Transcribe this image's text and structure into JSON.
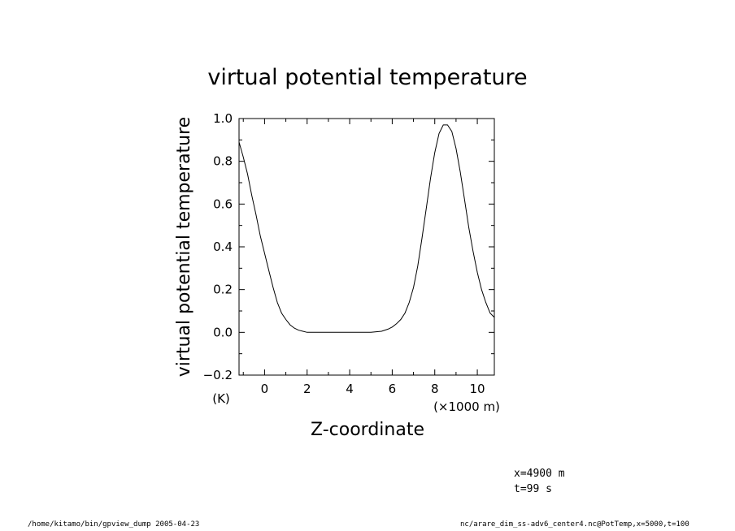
{
  "chart_data": {
    "type": "line",
    "title": "virtual potential temperature",
    "xlabel": "Z-coordinate",
    "ylabel": "virtual potential temperature",
    "xunit": "(×1000 m)",
    "yunit": "(K)",
    "xlim": [
      -1.2,
      10.8
    ],
    "ylim": [
      -0.2,
      1.0
    ],
    "xticks": [
      "0",
      "2",
      "4",
      "6",
      "8",
      "10"
    ],
    "yticks": [
      "1.0",
      "0.8",
      "0.6",
      "0.4",
      "0.2",
      "0.0",
      "−0.2"
    ],
    "grid": false,
    "series": [
      {
        "x": [
          -1.2,
          -1.0,
          -0.8,
          -0.6,
          -0.4,
          -0.2,
          0.0,
          0.2,
          0.4,
          0.6,
          0.8,
          1.0,
          1.2,
          1.4,
          1.6,
          1.8,
          2.0,
          2.5,
          3.0,
          4.0,
          5.0,
          5.5,
          5.8,
          6.0,
          6.2,
          6.4,
          6.6,
          6.8,
          7.0,
          7.2,
          7.4,
          7.6,
          7.8,
          8.0,
          8.2,
          8.4,
          8.6,
          8.8,
          9.0,
          9.2,
          9.4,
          9.6,
          9.8,
          10.0,
          10.2,
          10.4,
          10.6,
          10.8
        ],
        "y": [
          0.89,
          0.82,
          0.74,
          0.64,
          0.55,
          0.45,
          0.37,
          0.29,
          0.21,
          0.14,
          0.09,
          0.06,
          0.035,
          0.02,
          0.01,
          0.005,
          0.0,
          0.0,
          0.0,
          0.0,
          0.0,
          0.005,
          0.015,
          0.025,
          0.04,
          0.06,
          0.09,
          0.14,
          0.21,
          0.31,
          0.44,
          0.58,
          0.72,
          0.84,
          0.93,
          0.97,
          0.97,
          0.94,
          0.86,
          0.75,
          0.62,
          0.49,
          0.38,
          0.28,
          0.2,
          0.14,
          0.09,
          0.07
        ]
      }
    ]
  },
  "annotations": {
    "x_text": "x=4900 m",
    "t_text": "t=99 s"
  },
  "footer": {
    "left": "/home/kitamo/bin/gpview_dump  2005-04-23",
    "right": "nc/arare_dim_ss-adv6_center4.nc@PotTemp,x=5000,t=100"
  }
}
